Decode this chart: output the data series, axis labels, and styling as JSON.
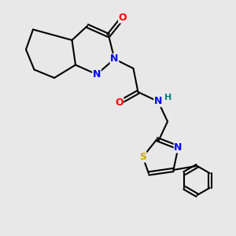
{
  "background_color": "#e8e8e8",
  "atom_colors": {
    "C": "#000000",
    "N": "#0000ff",
    "O": "#ff0000",
    "S": "#ccaa00",
    "H": "#008080"
  },
  "bond_color": "#000000",
  "bond_width": 1.5,
  "font_size_atoms": 9
}
